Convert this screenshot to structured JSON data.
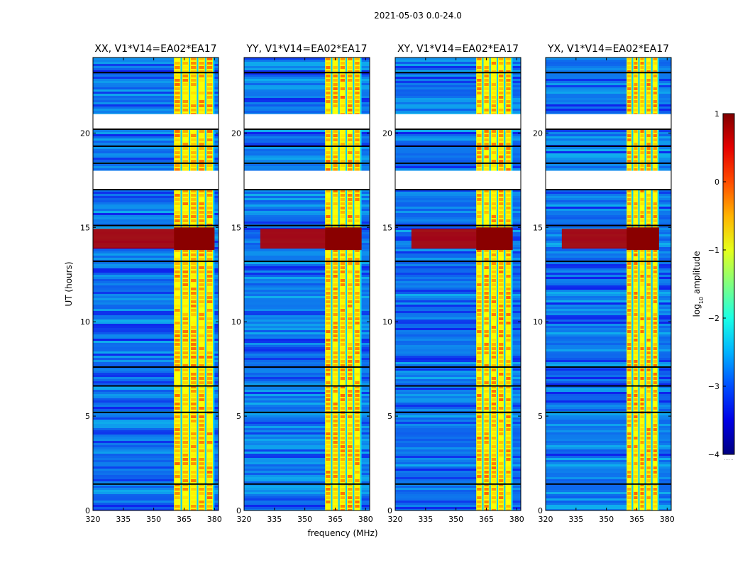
{
  "figure": {
    "suptitle": "2021-05-03 0.0-24.0",
    "xlabel": "frequency (MHz)",
    "ylabel": "UT (hours)",
    "colorbar_label_prefix": "log",
    "colorbar_label_sub": "10",
    "colorbar_label_suffix": " amplitude",
    "colorbar_foot": "......",
    "colors": {
      "background": "#ffffff",
      "weak": "#1f4fd8",
      "strong_red": "#b10000",
      "band_yellow": "#f2e21c",
      "missing": "#ffffff",
      "flag_line": "#000000"
    }
  },
  "chart_data": {
    "type": "heatmap",
    "colormap": "jet",
    "x_range_mhz": [
      320,
      382
    ],
    "y_range_hours": [
      0,
      24
    ],
    "xticks": [
      320,
      335,
      350,
      365,
      380
    ],
    "yticks": [
      0,
      5,
      10,
      15,
      20
    ],
    "colorbar": {
      "range": [
        -4,
        1
      ],
      "ticks": [
        1,
        0,
        -1,
        -2,
        -3,
        -4
      ]
    },
    "panels": [
      {
        "title": "XX, V1*V14=EA02*EA17",
        "rfi_band_mhz": [
          360,
          380
        ]
      },
      {
        "title": "YY, V1*V14=EA02*EA17",
        "rfi_band_mhz": [
          360,
          378
        ]
      },
      {
        "title": "XY, V1*V14=EA02*EA17",
        "rfi_band_mhz": [
          360,
          378
        ]
      },
      {
        "title": "YX, V1*V14=EA02*EA17",
        "rfi_band_mhz": [
          360,
          376
        ]
      }
    ],
    "strong_rfi_hours": [
      13.8,
      15.0
    ],
    "missing_data_hours": [
      [
        17.0,
        18.0
      ],
      [
        20.2,
        21.0
      ]
    ],
    "flag_lines_hours": [
      1.4,
      5.2,
      6.6,
      7.6,
      13.2,
      15.1,
      17.0,
      18.4,
      19.3,
      20.2,
      23.2
    ]
  }
}
